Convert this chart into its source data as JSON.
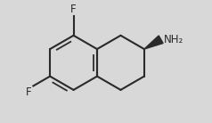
{
  "bg_color": "#d8d8d8",
  "bond_color": "#2a2a2a",
  "atom_color": "#2a2a2a",
  "line_width": 1.5,
  "figsize": [
    2.38,
    1.38
  ],
  "dpi": 100,
  "F_top_label": "F",
  "F_bottom_label": "F",
  "NH2_label": "NH₂",
  "font_size_atom": 8.5
}
